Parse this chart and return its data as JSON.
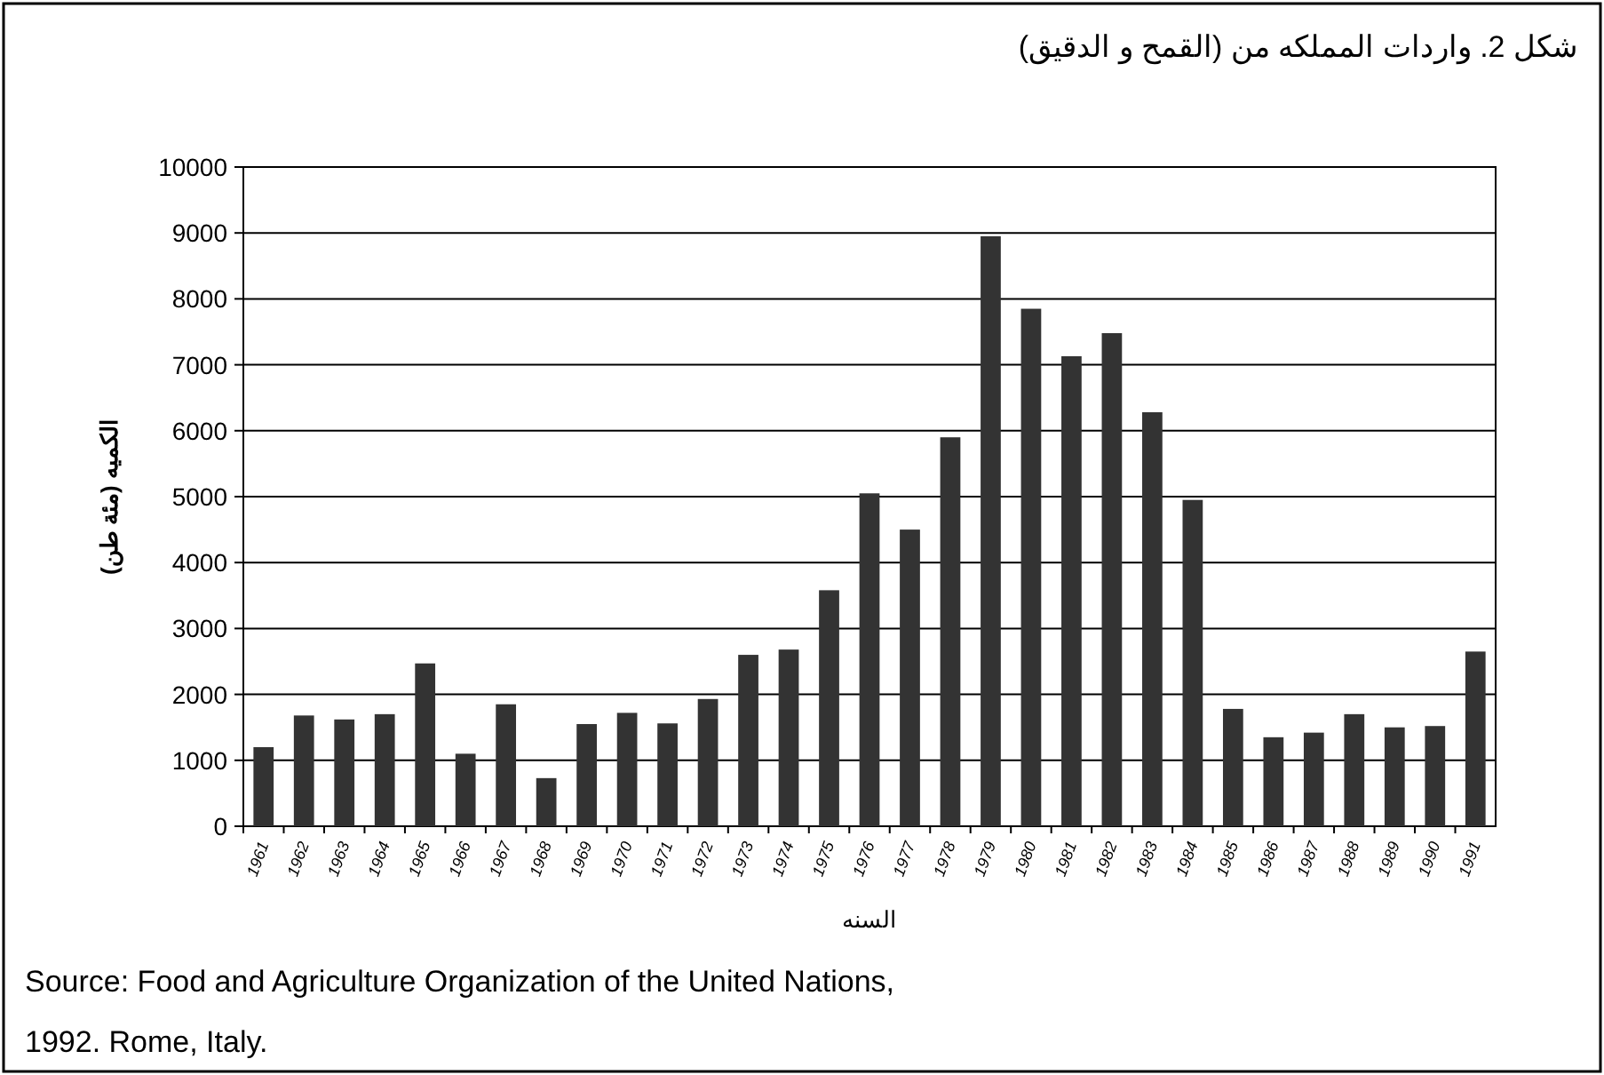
{
  "chart_data": {
    "type": "bar",
    "title": "شكل 2. واردات المملكه من (القمح و الدقيق)",
    "xlabel": "السنه",
    "ylabel": "الكميه (مئة طن)",
    "categories": [
      "1961",
      "1962",
      "1963",
      "1964",
      "1965",
      "1966",
      "1967",
      "1968",
      "1969",
      "1970",
      "1971",
      "1972",
      "1973",
      "1974",
      "1975",
      "1976",
      "1977",
      "1978",
      "1979",
      "1980",
      "1981",
      "1982",
      "1983",
      "1984",
      "1985",
      "1986",
      "1987",
      "1988",
      "1989",
      "1990",
      "1991"
    ],
    "values": [
      1200,
      1680,
      1620,
      1700,
      2470,
      1100,
      1850,
      730,
      1550,
      1720,
      1560,
      1930,
      2600,
      2680,
      3580,
      5050,
      4500,
      5900,
      8950,
      7850,
      7130,
      7480,
      6280,
      4950,
      1780,
      1350,
      1420,
      1700,
      1500,
      1520,
      2650
    ],
    "color": "#333333",
    "ylim": [
      0,
      10000
    ],
    "yticks": [
      0,
      1000,
      2000,
      3000,
      4000,
      5000,
      6000,
      7000,
      8000,
      9000,
      10000
    ],
    "grid": "y",
    "annotations": [
      "Source:   Food and Agriculture Organization of the United Nations,",
      "1992.  Rome, Italy."
    ]
  }
}
